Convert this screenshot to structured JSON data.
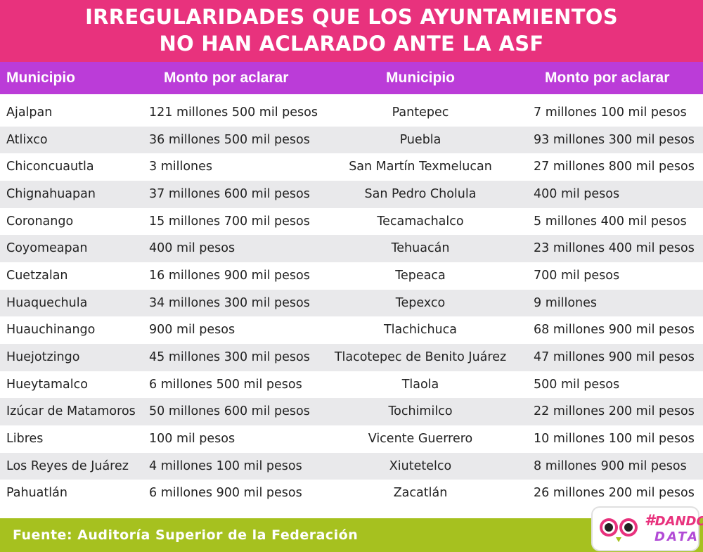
{
  "title": {
    "line1": "IRREGULARIDADES QUE LOS AYUNTAMIENTOS",
    "line2": "NO HAN ACLARADO ANTE LA ASF"
  },
  "headers": {
    "municipio_left": "Municipio",
    "monto_left": "Monto por aclarar",
    "municipio_right": "Municipio",
    "monto_right": "Monto por aclarar"
  },
  "rows": [
    {
      "mun1": "Ajalpan",
      "monto1": "121 millones 500 mil pesos",
      "mun2": "Pantepec",
      "monto2": "7 millones 100 mil pesos"
    },
    {
      "mun1": "Atlixco",
      "monto1": "36 millones 500 mil pesos",
      "mun2": "Puebla",
      "monto2": "93 millones 300 mil pesos"
    },
    {
      "mun1": "Chiconcuautla",
      "monto1": "3 millones",
      "mun2": "San Martín Texmelucan",
      "monto2": "27 millones 800 mil pesos"
    },
    {
      "mun1": "Chignahuapan",
      "monto1": "37 millones 600 mil pesos",
      "mun2": "San Pedro Cholula",
      "monto2": "400 mil pesos"
    },
    {
      "mun1": "Coronango",
      "monto1": "15 millones 700 mil pesos",
      "mun2": "Tecamachalco",
      "monto2": "5 millones 400 mil pesos"
    },
    {
      "mun1": "Coyomeapan",
      "monto1": "400 mil pesos",
      "mun2": "Tehuacán",
      "monto2": "23 millones 400 mil pesos"
    },
    {
      "mun1": "Cuetzalan",
      "monto1": "16 millones 900 mil pesos",
      "mun2": "Tepeaca",
      "monto2": "700 mil pesos"
    },
    {
      "mun1": "Huaquechula",
      "monto1": "34 millones 300 mil pesos",
      "mun2": "Tepexco",
      "monto2": "9 millones"
    },
    {
      "mun1": "Huauchinango",
      "monto1": "900 mil pesos",
      "mun2": "Tlachichuca",
      "monto2": "68 millones 900 mil pesos"
    },
    {
      "mun1": "Huejotzingo",
      "monto1": "45 millones 300 mil pesos",
      "mun2": "Tlacotepec de Benito Juárez",
      "monto2": "47 millones 900 mil pesos"
    },
    {
      "mun1": "Hueytamalco",
      "monto1": "6 millones 500 mil pesos",
      "mun2": "Tlaola",
      "monto2": "500 mil pesos"
    },
    {
      "mun1": "Izúcar de Matamoros",
      "monto1": "50 millones 600 mil pesos",
      "mun2": "Tochimilco",
      "monto2": "22 millones 200 mil pesos"
    },
    {
      "mun1": "Libres",
      "monto1": "100 mil pesos",
      "mun2": "Vicente Guerrero",
      "monto2": "10 millones 100 mil pesos"
    },
    {
      "mun1": "Los Reyes de Juárez",
      "monto1": "4 millones 100 mil pesos",
      "mun2": "Xiutetelco",
      "monto2": "8 millones 900 mil pesos"
    },
    {
      "mun1": "Pahuatlán",
      "monto1": "6 millones 900 mil pesos",
      "mun2": "Zacatlán",
      "monto2": "26 millones 200 mil pesos"
    }
  ],
  "footer": {
    "source": "Fuente: Auditoría Superior de la Federación"
  },
  "logo": {
    "hash": "#",
    "word1": "DANDO",
    "word2": "DATA",
    "icon": "owl-icon"
  },
  "colors": {
    "title_bg": "#e8327d",
    "header_bg": "#bb3cd8",
    "row_shade": "#e9e9eb",
    "footer_bg": "#a6c11f"
  }
}
